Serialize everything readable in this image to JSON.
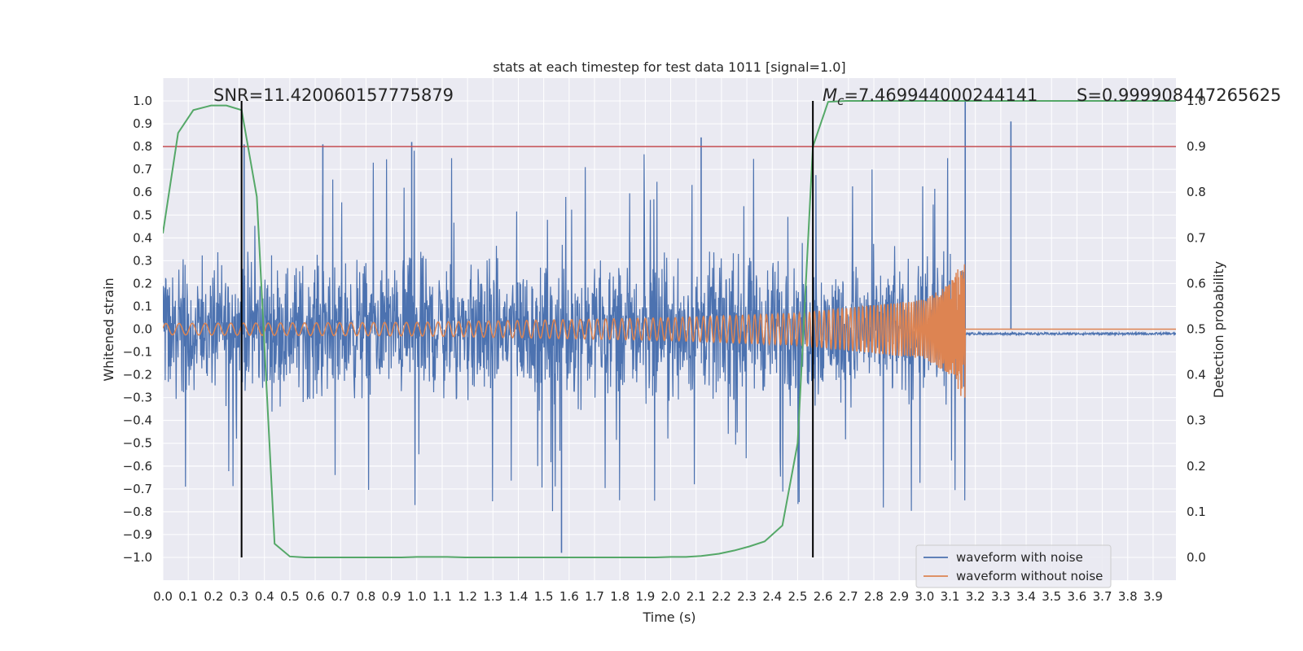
{
  "chart_data": {
    "type": "line",
    "title": "stats at each timestep for test data 1011 [signal=1.0]",
    "xlabel": "Time (s)",
    "ylabel": "Whitened strain",
    "y2label": "Detection probability",
    "xlim": [
      0.0,
      3.99
    ],
    "ylim": [
      -1.1,
      1.1
    ],
    "y2lim": [
      -0.05,
      1.05
    ],
    "x_ticks": [
      "0.0",
      "0.1",
      "0.2",
      "0.3",
      "0.4",
      "0.5",
      "0.6",
      "0.7",
      "0.8",
      "0.9",
      "1.0",
      "1.1",
      "1.2",
      "1.3",
      "1.4",
      "1.5",
      "1.6",
      "1.7",
      "1.8",
      "1.9",
      "2.0",
      "2.1",
      "2.2",
      "2.3",
      "2.4",
      "2.5",
      "2.6",
      "2.7",
      "2.8",
      "2.9",
      "3.0",
      "3.1",
      "3.2",
      "3.3",
      "3.4",
      "3.5",
      "3.6",
      "3.7",
      "3.8",
      "3.9"
    ],
    "y_ticks": [
      "1.0",
      "0.9",
      "0.8",
      "0.7",
      "0.6",
      "0.5",
      "0.4",
      "0.3",
      "0.2",
      "0.1",
      "0.0",
      "−0.1",
      "−0.2",
      "−0.3",
      "−0.4",
      "−0.5",
      "−0.6",
      "−0.7",
      "−0.8",
      "−0.9",
      "−1.0"
    ],
    "y2_ticks": [
      "1.0",
      "0.9",
      "0.8",
      "0.7",
      "0.6",
      "0.5",
      "0.4",
      "0.3",
      "0.2",
      "0.1",
      "0.0"
    ],
    "grid": true,
    "legend_position": "lower-right",
    "series": [
      {
        "name": "waveform with noise",
        "color": "#4c72b0",
        "description": "noisy whitened strain spanning 0.0–3.99 s, amplitude mostly within ±0.6 with spikes up to ±1.0; after ~3.16 s reduced to a flat baseline near −0.02",
        "approx_points": [
          [
            0.32,
            0.81
          ],
          [
            0.63,
            0.81
          ],
          [
            0.98,
            0.82
          ],
          [
            1.57,
            -0.98
          ],
          [
            2.12,
            0.84
          ],
          [
            3.16,
            1.0
          ],
          [
            3.34,
            0.91
          ]
        ]
      },
      {
        "name": "waveform without noise",
        "color": "#dd8452",
        "description": "chirp signal with amplitude growing from ~0.025 at 0 s to ~0.33 at the merger near 3.16 s, then zero",
        "approx_points": [
          [
            0.0,
            0.025
          ],
          [
            1.0,
            0.03
          ],
          [
            2.0,
            0.05
          ],
          [
            2.5,
            0.07
          ],
          [
            3.0,
            0.13
          ],
          [
            3.1,
            0.2
          ],
          [
            3.16,
            0.33
          ],
          [
            3.17,
            0.0
          ],
          [
            3.99,
            0.0
          ]
        ]
      },
      {
        "label": "detection probability (right axis)",
        "color": "#55a868",
        "x": [
          0.0,
          0.06,
          0.12,
          0.19,
          0.25,
          0.31,
          0.37,
          0.44,
          0.5,
          0.56,
          0.62,
          0.69,
          0.75,
          0.81,
          0.87,
          0.94,
          1.0,
          1.06,
          1.12,
          1.19,
          1.25,
          1.31,
          1.37,
          1.44,
          1.5,
          1.56,
          1.62,
          1.69,
          1.75,
          1.81,
          1.87,
          1.94,
          2.0,
          2.06,
          2.12,
          2.19,
          2.25,
          2.31,
          2.37,
          2.44,
          2.5,
          2.56,
          2.62,
          2.69,
          3.99
        ],
        "values": [
          0.71,
          0.93,
          0.98,
          0.99,
          0.99,
          0.98,
          0.79,
          0.03,
          0.002,
          0.0,
          0.0,
          0.0,
          0.0,
          0.0,
          0.0,
          0.0,
          0.001,
          0.001,
          0.001,
          0.0,
          0.0,
          0.0,
          0.0,
          0.0,
          0.0,
          0.0,
          0.0,
          0.0,
          0.0,
          0.0,
          0.0,
          0.0,
          0.001,
          0.001,
          0.003,
          0.008,
          0.015,
          0.024,
          0.035,
          0.07,
          0.25,
          0.9,
          0.998,
          1.0,
          1.0
        ]
      }
    ],
    "threshold": {
      "value": 0.9,
      "axis": "right",
      "color": "#c44e52"
    },
    "markers": [
      {
        "x": 0.31,
        "color": "#000000"
      },
      {
        "x": 2.56,
        "color": "#000000"
      }
    ],
    "annotations": {
      "snr": "SNR=11.420060157775879",
      "mc_symbol": "M",
      "mc_sub": "c",
      "mc_value": "=7.469944000244141",
      "s": "S=0.999908447265625"
    }
  }
}
